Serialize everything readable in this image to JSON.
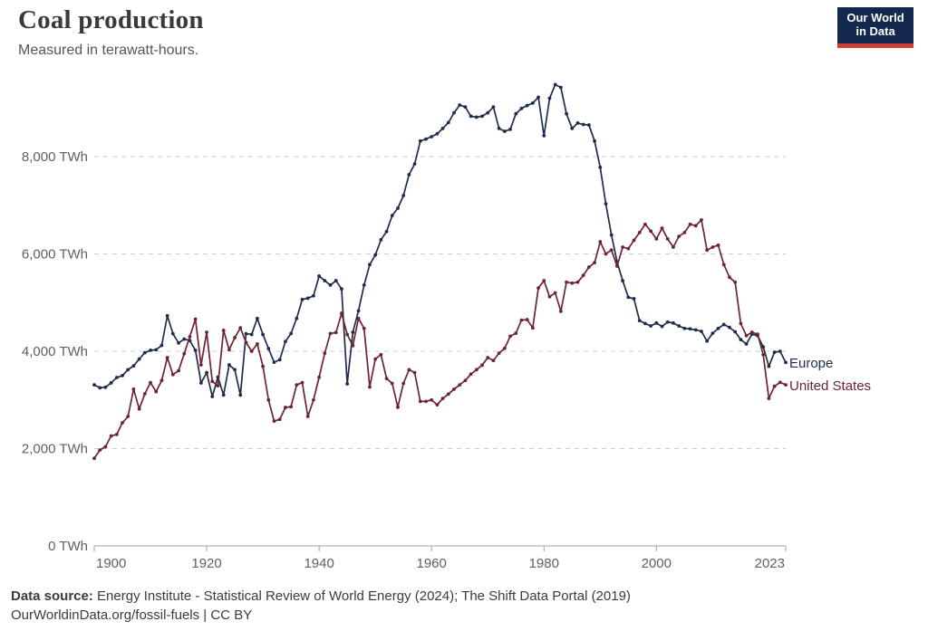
{
  "header": {
    "title": "Coal production",
    "subtitle": "Measured in terawatt-hours.",
    "logo": {
      "line1": "Our World",
      "line2": "in Data",
      "bg_color": "#12294d",
      "bar_color": "#cf3d36"
    }
  },
  "chart_data": {
    "type": "line",
    "title": "Coal production",
    "unit": "TWh",
    "x_range": [
      1900,
      2023
    ],
    "x_step": 1,
    "ylim": [
      0,
      9600
    ],
    "grid": true,
    "legend_position": "right-end-labels",
    "x_ticks": [
      {
        "year": 1900,
        "label": "1900"
      },
      {
        "year": 1920,
        "label": "1920"
      },
      {
        "year": 1940,
        "label": "1940"
      },
      {
        "year": 1960,
        "label": "1960"
      },
      {
        "year": 1980,
        "label": "1980"
      },
      {
        "year": 2000,
        "label": "2000"
      },
      {
        "year": 2023,
        "label": "2023"
      }
    ],
    "y_ticks": [
      {
        "value": 0,
        "label": "0 TWh"
      },
      {
        "value": 2000,
        "label": "2,000 TWh"
      },
      {
        "value": 4000,
        "label": "4,000 TWh"
      },
      {
        "value": 6000,
        "label": "6,000 TWh"
      },
      {
        "value": 8000,
        "label": "8,000 TWh"
      }
    ],
    "series": [
      {
        "name": "Europe",
        "color": "#1f2d4d",
        "values": [
          3310,
          3250,
          3260,
          3350,
          3460,
          3500,
          3620,
          3700,
          3840,
          3970,
          4020,
          4030,
          4120,
          4730,
          4360,
          4170,
          4250,
          4220,
          4020,
          3350,
          3560,
          3070,
          3470,
          3100,
          3720,
          3620,
          3100,
          4360,
          4345,
          4675,
          4345,
          4055,
          3775,
          3825,
          4200,
          4365,
          4675,
          5065,
          5090,
          5140,
          5545,
          5450,
          5360,
          5450,
          5280,
          3330,
          4390,
          4830,
          5360,
          5780,
          5980,
          6290,
          6460,
          6790,
          6940,
          7200,
          7630,
          7850,
          8320,
          8360,
          8410,
          8470,
          8580,
          8700,
          8900,
          9060,
          9020,
          8830,
          8810,
          8830,
          8900,
          9020,
          8580,
          8520,
          8560,
          8880,
          8990,
          9050,
          9100,
          9220,
          8430,
          9200,
          9480,
          9420,
          8880,
          8580,
          8690,
          8660,
          8650,
          8320,
          7780,
          7030,
          6390,
          5840,
          5450,
          5110,
          5080,
          4630,
          4570,
          4520,
          4580,
          4510,
          4600,
          4580,
          4520,
          4470,
          4460,
          4440,
          4410,
          4210,
          4370,
          4470,
          4550,
          4490,
          4400,
          4240,
          4150,
          4350,
          4320,
          4090,
          3690,
          3980,
          4000,
          3770
        ]
      },
      {
        "name": "United States",
        "color": "#6d2433",
        "values": [
          1800,
          1970,
          2040,
          2260,
          2290,
          2530,
          2660,
          3220,
          2815,
          3125,
          3355,
          3170,
          3400,
          3870,
          3520,
          3600,
          3950,
          4300,
          4660,
          3720,
          4390,
          3380,
          3290,
          4430,
          4030,
          4280,
          4480,
          4180,
          4000,
          4150,
          3690,
          3000,
          2565,
          2600,
          2845,
          2860,
          3310,
          3355,
          2660,
          3000,
          3465,
          3960,
          4365,
          4385,
          4780,
          4345,
          4115,
          4675,
          4470,
          3265,
          3840,
          3930,
          3440,
          3340,
          2850,
          3340,
          3620,
          3560,
          2970,
          2970,
          3000,
          2900,
          3030,
          3120,
          3220,
          3310,
          3400,
          3530,
          3620,
          3715,
          3870,
          3810,
          3960,
          4060,
          4310,
          4370,
          4640,
          4650,
          4480,
          5300,
          5450,
          5120,
          5200,
          4820,
          5420,
          5400,
          5420,
          5560,
          5730,
          5820,
          6250,
          6000,
          6080,
          5750,
          6140,
          6110,
          6280,
          6440,
          6610,
          6470,
          6310,
          6530,
          6310,
          6140,
          6360,
          6440,
          6610,
          6580,
          6700,
          6080,
          6140,
          6180,
          5780,
          5520,
          5420,
          4570,
          4320,
          4390,
          4350,
          3930,
          3030,
          3280,
          3360,
          3310
        ]
      }
    ]
  },
  "footer": {
    "source_label": "Data source:",
    "source_text": " Energy Institute - Statistical Review of World Energy (2024); The Shift Data Portal (2019)",
    "link_text": "OurWorldinData.org/fossil-fuels",
    "rest_text": " | CC BY"
  }
}
